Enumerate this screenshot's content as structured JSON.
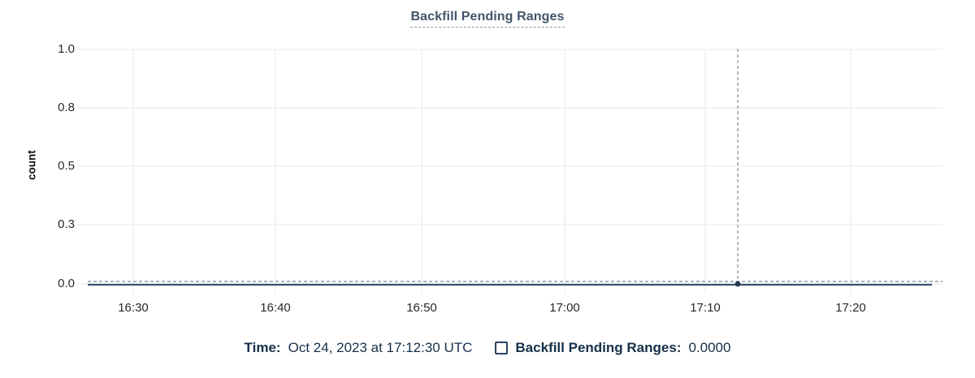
{
  "header": {
    "title": "Backfill Pending Ranges"
  },
  "chart_data": {
    "type": "line",
    "title": "Backfill Pending Ranges",
    "xlabel": "",
    "ylabel": "count",
    "x_tick_labels": [
      "16:30",
      "16:40",
      "16:50",
      "17:00",
      "17:10",
      "17:20"
    ],
    "y_tick_labels": [
      "1.0",
      "0.8",
      "0.5",
      "0.3",
      "0.0"
    ],
    "ylim": [
      0.0,
      1.0
    ],
    "grid": true,
    "legend_position": "bottom",
    "series": [
      {
        "name": "Backfill Pending Ranges",
        "x": [
          "16:30",
          "16:40",
          "16:50",
          "17:00",
          "17:10",
          "17:20"
        ],
        "values": [
          0,
          0,
          0,
          0,
          0,
          0
        ]
      }
    ],
    "hover_point": {
      "time": "17:12:30",
      "value": 0.0
    }
  },
  "tooltip": {
    "time_label": "Time:",
    "time_value": "Oct 24, 2023 at 17:12:30 UTC",
    "series_label": "Backfill Pending Ranges:",
    "series_value": "0.0000",
    "checkbox_checked": false
  },
  "colors": {
    "title_text": "#44546b",
    "legend_text": "#16304a",
    "series_line": "#375472",
    "series_point": "#24384f",
    "zero_dashed_line": "#a7b3c0",
    "crosshair": "#7f8c9b",
    "gridline": "#efefef",
    "axis_text": "#26292e"
  }
}
